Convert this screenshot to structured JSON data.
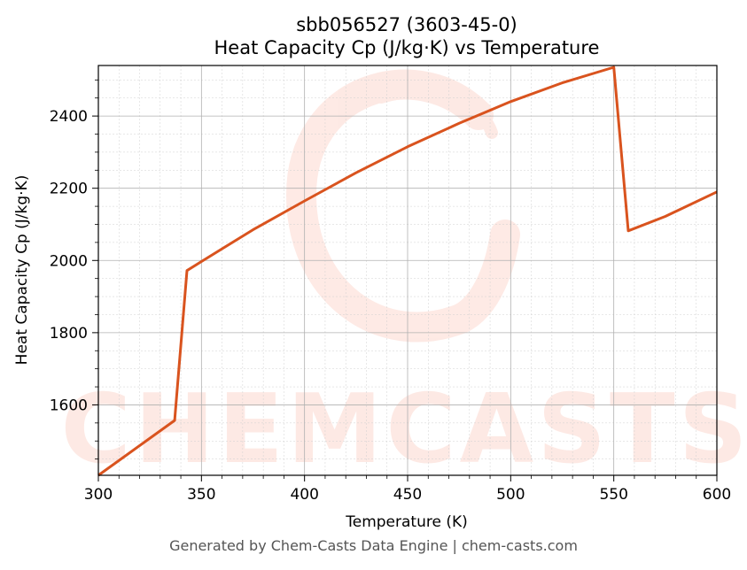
{
  "chart_data": {
    "type": "line",
    "title": "sbb056527 (3603-45-0)",
    "subtitle": "Heat Capacity Cp (J/kg·K) vs Temperature",
    "xlabel": "Temperature (K)",
    "ylabel": "Heat Capacity Cp (J/kg·K)",
    "xlim": [
      300,
      600
    ],
    "ylim": [
      1405,
      2540
    ],
    "x_ticks": [
      300,
      350,
      400,
      450,
      500,
      550,
      600
    ],
    "y_ticks": [
      1600,
      1800,
      2000,
      2200,
      2400
    ],
    "grid": true,
    "legend": "none",
    "series": [
      {
        "color": "#d9531e",
        "x": [
          300,
          337,
          343,
          350,
          375,
          400,
          425,
          450,
          475,
          500,
          525,
          550,
          557,
          575,
          600
        ],
        "y": [
          1405,
          1557,
          1972,
          1997,
          2085,
          2165,
          2243,
          2315,
          2380,
          2440,
          2492,
          2535,
          2082,
          2122,
          2190
        ]
      }
    ]
  },
  "watermark": "CHEMCASTS",
  "footer": "Generated by Chem-Casts Data Engine | chem-casts.com"
}
